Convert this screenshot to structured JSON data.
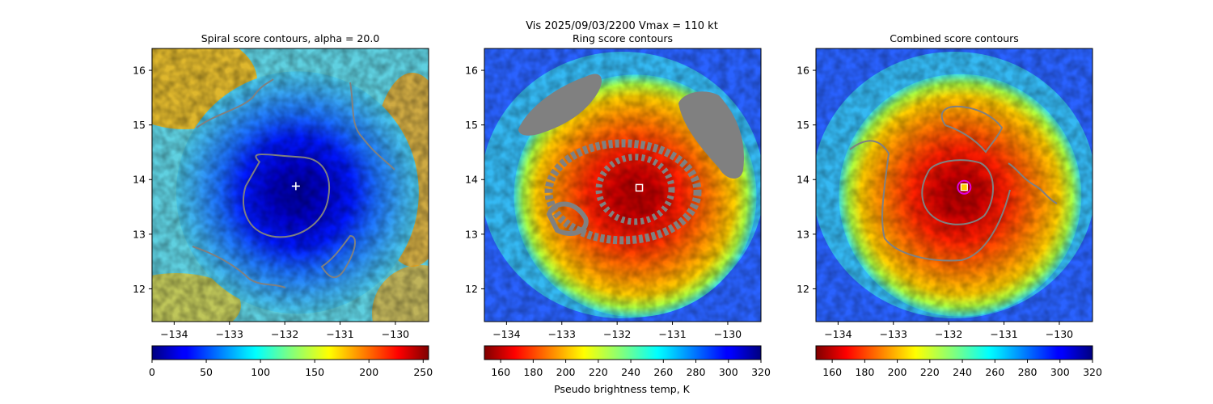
{
  "suptitle_line1": "Vis  2025/09/03/2200    Vmax = 110 kt",
  "colorbar_label": "Pseudo brightness temp, K",
  "colors": {
    "contour": "#808080",
    "center_marker": "#ffffff",
    "combined_marker_ring": "#e000e0",
    "combined_marker_fill": "#ffd000"
  },
  "chart_data": [
    {
      "type": "heatmap",
      "title": "Spiral score contours, alpha = 20.0",
      "colormap": "jet",
      "xlim": [
        -134.4,
        -129.4
      ],
      "ylim": [
        11.4,
        16.4
      ],
      "x_ticks": [
        -134,
        -133,
        -132,
        -131,
        -130
      ],
      "x_tick_labels": [
        "−134",
        "−133",
        "−132",
        "−131",
        "−130"
      ],
      "y_ticks": [
        12,
        13,
        14,
        15,
        16
      ],
      "y_tick_labels": [
        "12",
        "13",
        "14",
        "15",
        "16"
      ],
      "center": {
        "lon": -131.8,
        "lat": 13.88,
        "marker": "plus"
      },
      "colorbar": {
        "min": 0,
        "max": 255,
        "ticks": [
          0,
          50,
          100,
          150,
          200,
          250
        ],
        "reversed": false
      }
    },
    {
      "type": "heatmap",
      "title": "Ring score contours",
      "colormap": "jet_r",
      "xlim": [
        -134.4,
        -129.4
      ],
      "ylim": [
        11.4,
        16.4
      ],
      "x_ticks": [
        -134,
        -133,
        -132,
        -131,
        -130
      ],
      "x_tick_labels": [
        "−134",
        "−133",
        "−132",
        "−131",
        "−130"
      ],
      "y_ticks": [
        12,
        13,
        14,
        15,
        16
      ],
      "y_tick_labels": [
        "12",
        "13",
        "14",
        "15",
        "16"
      ],
      "center": {
        "lon": -131.6,
        "lat": 13.85,
        "marker": "square"
      },
      "colorbar": {
        "min": 150,
        "max": 320,
        "ticks": [
          160,
          180,
          200,
          220,
          240,
          260,
          280,
          300,
          320
        ],
        "reversed": true
      }
    },
    {
      "type": "heatmap",
      "title": "Combined score contours",
      "colormap": "jet_r",
      "xlim": [
        -134.4,
        -129.4
      ],
      "ylim": [
        11.4,
        16.4
      ],
      "x_ticks": [
        -134,
        -133,
        -132,
        -131,
        -130
      ],
      "x_tick_labels": [
        "−134",
        "−133",
        "−132",
        "−131",
        "−130"
      ],
      "y_ticks": [
        12,
        13,
        14,
        15,
        16
      ],
      "y_tick_labels": [
        "12",
        "13",
        "14",
        "15",
        "16"
      ],
      "center": {
        "lon": -131.72,
        "lat": 13.86,
        "marker": "square"
      },
      "colorbar": {
        "min": 150,
        "max": 320,
        "ticks": [
          160,
          180,
          200,
          220,
          240,
          260,
          280,
          300,
          320
        ],
        "reversed": true
      }
    }
  ]
}
